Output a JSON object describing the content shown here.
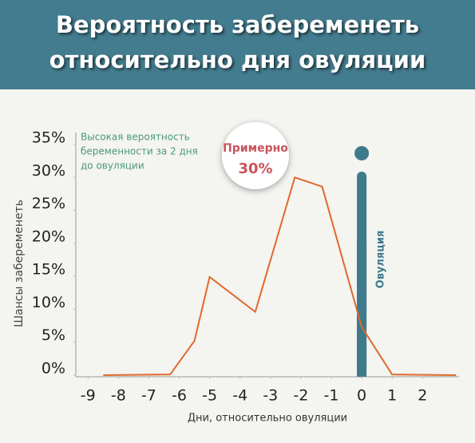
{
  "chart_data": {
    "type": "line",
    "title": [
      "Вероятность забеременеть",
      "относительно дня овуляции"
    ],
    "y_label": "Шансы забеременеть",
    "x_label": "Дни, относительно овуляции",
    "annotation": [
      "Высокая вероятность",
      "беременности за 2 дня",
      "до овуляции"
    ],
    "callout": [
      "Примерно",
      "30%"
    ],
    "marker_label": "Овуляция",
    "marker_x": 0,
    "marker_color": "#3f7a8c",
    "x": [
      -8.5,
      -6.3,
      -5.5,
      -5,
      -3.5,
      -2.2,
      -1.3,
      0,
      1,
      3.1
    ],
    "series": [
      {
        "color": "#e0692a",
        "values": [
          0,
          0.1,
          5.2,
          14.9,
          9.6,
          30,
          28.6,
          7.3,
          0.1,
          0
        ]
      }
    ],
    "xlim": [
      -9.4,
      3.2
    ],
    "xticks": [
      -9,
      -8,
      -7,
      -6,
      -5,
      -4,
      -3,
      -2,
      -1,
      0,
      1,
      2
    ],
    "ylim": [
      0,
      35
    ],
    "yticks": [
      {
        "value": 0,
        "label": "0%"
      },
      {
        "value": 5,
        "label": "5%"
      },
      {
        "value": 10,
        "label": "10%"
      },
      {
        "value": 15,
        "label": "15%"
      },
      {
        "value": 20,
        "label": "20%"
      },
      {
        "value": 25,
        "label": "25%"
      },
      {
        "value": 30,
        "label": "30%"
      },
      {
        "value": 35,
        "label": "35%"
      }
    ]
  }
}
